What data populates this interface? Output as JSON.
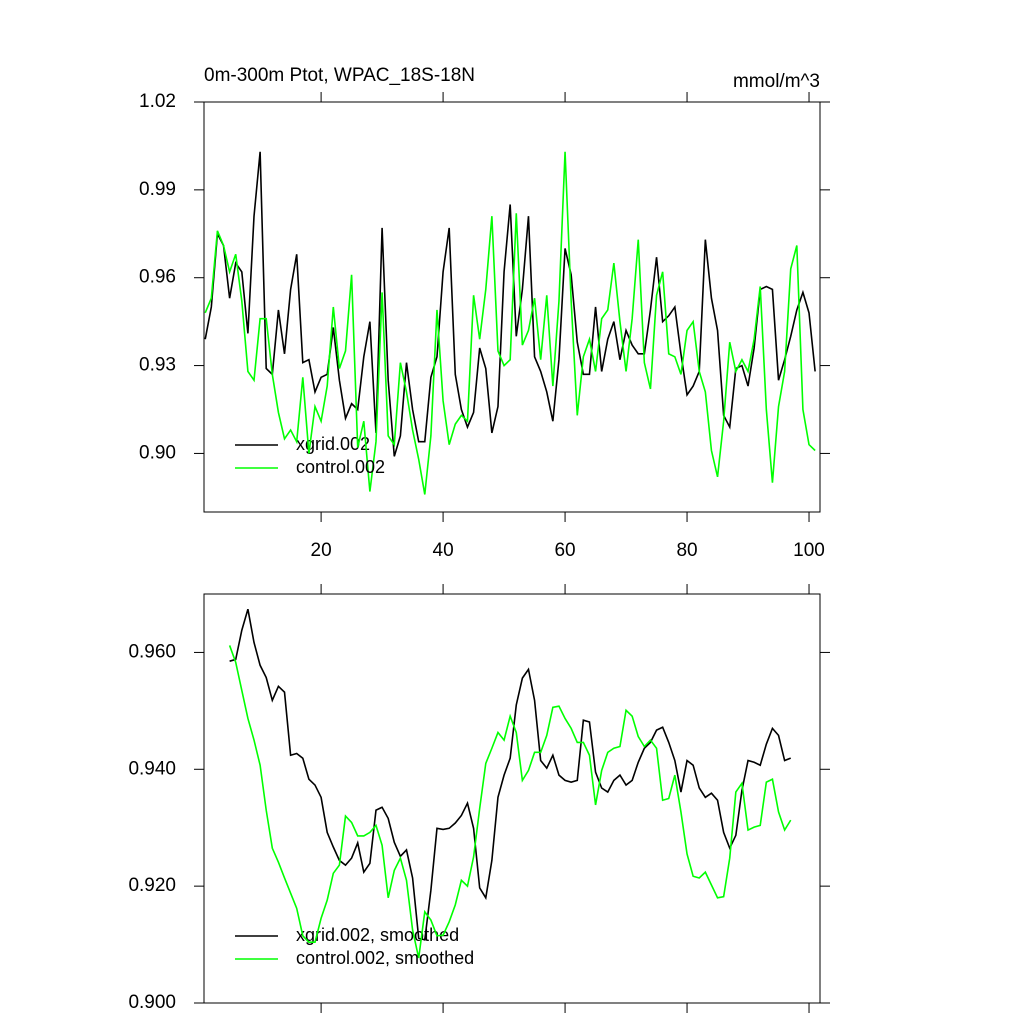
{
  "chart_data": [
    {
      "type": "line",
      "title": "0m-300m Ptot, WPAC_18S-18N",
      "units": "mmol/m^3",
      "x": [
        1,
        2,
        3,
        4,
        5,
        6,
        7,
        8,
        9,
        10,
        11,
        12,
        13,
        14,
        15,
        16,
        17,
        18,
        19,
        20,
        21,
        22,
        23,
        24,
        25,
        26,
        27,
        28,
        29,
        30,
        31,
        32,
        33,
        34,
        35,
        36,
        37,
        38,
        39,
        40,
        41,
        42,
        43,
        44,
        45,
        46,
        47,
        48,
        49,
        50,
        51,
        52,
        53,
        54,
        55,
        56,
        57,
        58,
        59,
        60,
        61,
        62,
        63,
        64,
        65,
        66,
        67,
        68,
        69,
        70,
        71,
        72,
        73,
        74,
        75,
        76,
        77,
        78,
        79,
        80,
        81,
        82,
        83,
        84,
        85,
        86,
        87,
        88,
        89,
        90,
        91,
        92,
        93,
        94,
        95,
        96,
        97,
        98,
        99,
        100,
        101
      ],
      "series": [
        {
          "name": "xgrid.002",
          "color": "#000000",
          "values": [
            0.939,
            0.95,
            0.975,
            0.971,
            0.953,
            0.965,
            0.962,
            0.941,
            0.981,
            1.003,
            0.929,
            0.927,
            0.949,
            0.934,
            0.956,
            0.968,
            0.931,
            0.932,
            0.921,
            0.926,
            0.927,
            0.943,
            0.925,
            0.912,
            0.917,
            0.915,
            0.933,
            0.945,
            0.907,
            0.977,
            0.925,
            0.899,
            0.906,
            0.931,
            0.915,
            0.904,
            0.904,
            0.926,
            0.933,
            0.962,
            0.977,
            0.927,
            0.915,
            0.909,
            0.914,
            0.936,
            0.929,
            0.907,
            0.916,
            0.962,
            0.985,
            0.94,
            0.956,
            0.981,
            0.933,
            0.928,
            0.921,
            0.911,
            0.932,
            0.97,
            0.961,
            0.938,
            0.927,
            0.927,
            0.95,
            0.928,
            0.939,
            0.945,
            0.932,
            0.942,
            0.937,
            0.934,
            0.934,
            0.949,
            0.967,
            0.945,
            0.947,
            0.95,
            0.934,
            0.92,
            0.923,
            0.928,
            0.973,
            0.953,
            0.942,
            0.913,
            0.909,
            0.929,
            0.93,
            0.923,
            0.936,
            0.956,
            0.957,
            0.956,
            0.925,
            0.932,
            0.94,
            0.949,
            0.955,
            0.948,
            0.928
          ]
        },
        {
          "name": "control.002",
          "color": "#00ff00",
          "values": [
            0.948,
            0.953,
            0.976,
            0.971,
            0.962,
            0.968,
            0.952,
            0.928,
            0.925,
            0.946,
            0.946,
            0.927,
            0.914,
            0.905,
            0.908,
            0.904,
            0.926,
            0.9,
            0.916,
            0.911,
            0.923,
            0.95,
            0.929,
            0.935,
            0.961,
            0.902,
            0.911,
            0.887,
            0.904,
            0.955,
            0.906,
            0.903,
            0.931,
            0.921,
            0.908,
            0.898,
            0.886,
            0.906,
            0.949,
            0.918,
            0.903,
            0.91,
            0.913,
            0.911,
            0.954,
            0.939,
            0.956,
            0.981,
            0.935,
            0.93,
            0.932,
            0.982,
            0.937,
            0.942,
            0.953,
            0.932,
            0.954,
            0.923,
            0.952,
            1.003,
            0.952,
            0.913,
            0.933,
            0.939,
            0.928,
            0.946,
            0.949,
            0.965,
            0.945,
            0.928,
            0.946,
            0.973,
            0.931,
            0.922,
            0.954,
            0.962,
            0.934,
            0.933,
            0.927,
            0.942,
            0.945,
            0.928,
            0.921,
            0.901,
            0.892,
            0.911,
            0.938,
            0.928,
            0.932,
            0.928,
            0.939,
            0.957,
            0.915,
            0.89,
            0.916,
            0.928,
            0.963,
            0.971,
            0.915,
            0.903,
            0.901
          ]
        }
      ],
      "xlim": [
        0.8,
        101.8
      ],
      "xticks": [
        20,
        40,
        60,
        80,
        100
      ],
      "ylim": [
        0.88,
        1.02
      ],
      "yticks": [
        {
          "value": 0.9,
          "label": "0.90"
        },
        0.93,
        0.96,
        0.99,
        1.02
      ],
      "legend": "lower left"
    },
    {
      "type": "line",
      "x": [
        5,
        6,
        7,
        8,
        9,
        10,
        11,
        12,
        13,
        14,
        15,
        16,
        17,
        18,
        19,
        20,
        21,
        22,
        23,
        24,
        25,
        26,
        27,
        28,
        29,
        30,
        31,
        32,
        33,
        34,
        35,
        36,
        37,
        38,
        39,
        40,
        41,
        42,
        43,
        44,
        45,
        46,
        47,
        48,
        49,
        50,
        51,
        52,
        53,
        54,
        55,
        56,
        57,
        58,
        59,
        60,
        61,
        62,
        63,
        64,
        65,
        66,
        67,
        68,
        69,
        70,
        71,
        72,
        73,
        74,
        75,
        76,
        77,
        78,
        79,
        80,
        81,
        82,
        83,
        84,
        85,
        86,
        87,
        88,
        89,
        90,
        91,
        92,
        93,
        94,
        95,
        96,
        97
      ],
      "series": [
        {
          "name": "xgrid.002, smoothed",
          "color": "#000000",
          "values": [
            0.9585,
            0.9588,
            0.9638,
            0.9674,
            0.9617,
            0.9578,
            0.9557,
            0.9518,
            0.9542,
            0.9532,
            0.9424,
            0.9427,
            0.9419,
            0.9383,
            0.9373,
            0.9352,
            0.9292,
            0.9267,
            0.9244,
            0.9236,
            0.9248,
            0.9274,
            0.9224,
            0.9239,
            0.933,
            0.9335,
            0.9316,
            0.9275,
            0.9251,
            0.9262,
            0.9214,
            0.9111,
            0.9108,
            0.9193,
            0.9299,
            0.9297,
            0.9299,
            0.9308,
            0.9321,
            0.9342,
            0.9299,
            0.9197,
            0.918,
            0.9244,
            0.9352,
            0.939,
            0.9419,
            0.951,
            0.9556,
            0.9571,
            0.9518,
            0.9415,
            0.9402,
            0.9424,
            0.939,
            0.9381,
            0.9378,
            0.9381,
            0.9484,
            0.9481,
            0.9395,
            0.9368,
            0.9361,
            0.9381,
            0.939,
            0.9373,
            0.9381,
            0.9412,
            0.9436,
            0.9446,
            0.9467,
            0.9472,
            0.9446,
            0.9415,
            0.9361,
            0.9415,
            0.9407,
            0.9368,
            0.9352,
            0.9359,
            0.9347,
            0.9292,
            0.9265,
            0.9287,
            0.9364,
            0.9415,
            0.9412,
            0.9407,
            0.9443,
            0.947,
            0.9458,
            0.9415,
            0.9419
          ]
        },
        {
          "name": "control.002, smoothed",
          "color": "#00ff00",
          "values": [
            0.9612,
            0.9583,
            0.9535,
            0.9487,
            0.945,
            0.9407,
            0.933,
            0.9265,
            0.9241,
            0.9214,
            0.9188,
            0.9162,
            0.9115,
            0.9104,
            0.9104,
            0.9145,
            0.9176,
            0.9222,
            0.9236,
            0.932,
            0.9309,
            0.9286,
            0.9286,
            0.9292,
            0.9304,
            0.927,
            0.918,
            0.9227,
            0.9248,
            0.921,
            0.9125,
            0.9077,
            0.9156,
            0.9142,
            0.9115,
            0.9116,
            0.9139,
            0.9168,
            0.921,
            0.92,
            0.925,
            0.9333,
            0.941,
            0.9436,
            0.9463,
            0.945,
            0.9491,
            0.9463,
            0.9381,
            0.9398,
            0.9429,
            0.9429,
            0.9458,
            0.9506,
            0.9508,
            0.9487,
            0.947,
            0.9446,
            0.9446,
            0.9424,
            0.9339,
            0.9398,
            0.9429,
            0.9436,
            0.9439,
            0.9501,
            0.9491,
            0.9456,
            0.9439,
            0.945,
            0.9436,
            0.9347,
            0.935,
            0.939,
            0.9327,
            0.9255,
            0.9217,
            0.9214,
            0.9224,
            0.9202,
            0.918,
            0.9182,
            0.9248,
            0.9361,
            0.9376,
            0.9296,
            0.9301,
            0.9304,
            0.9378,
            0.9383,
            0.9327,
            0.9296,
            0.9313
          ]
        }
      ],
      "xlim": [
        0.8,
        101.8
      ],
      "xticks": [
        20,
        40,
        60,
        80,
        100
      ],
      "xtick_labels": false,
      "ylim": [
        0.9,
        0.97
      ],
      "yticks": [
        {
          "value": 0.9,
          "label": "0.900"
        },
        {
          "value": 0.92,
          "label": "0.920"
        },
        {
          "value": 0.94,
          "label": "0.940"
        },
        {
          "value": 0.96,
          "label": "0.960"
        }
      ],
      "legend": "lower left"
    }
  ]
}
